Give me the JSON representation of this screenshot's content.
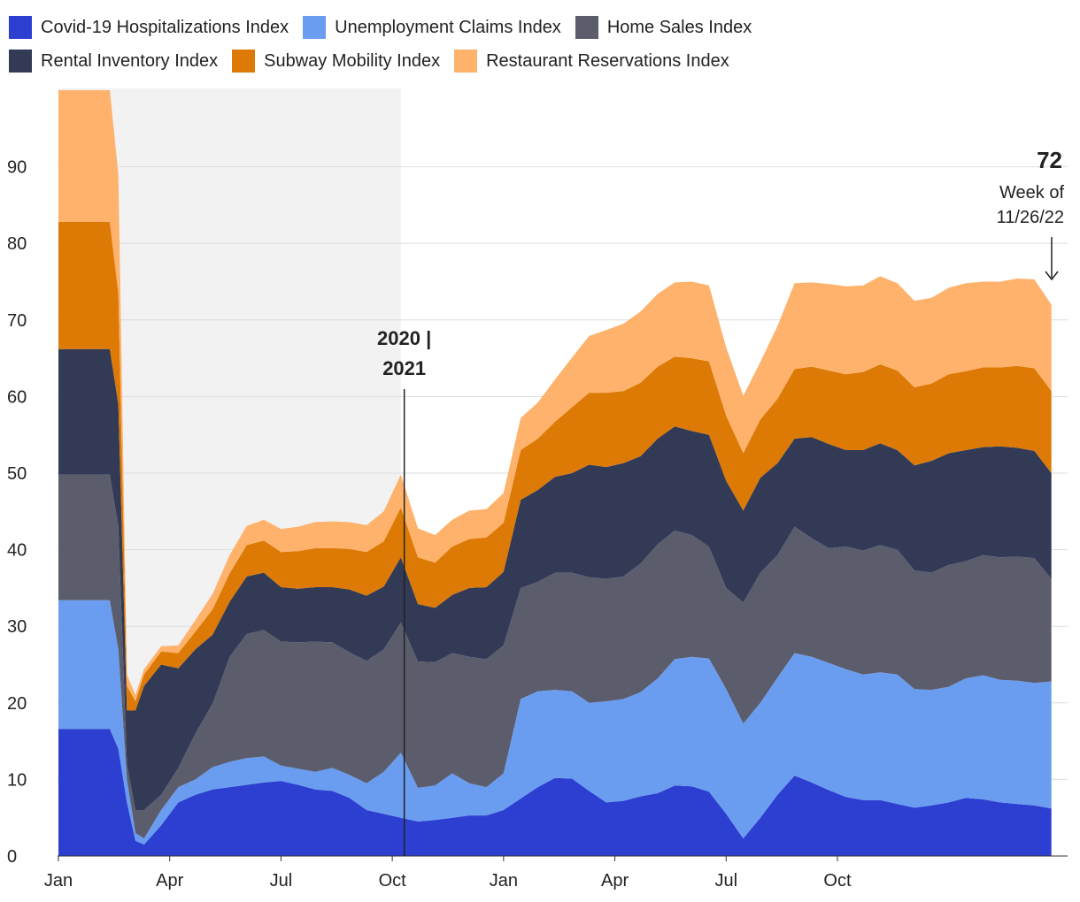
{
  "chart_data": {
    "type": "area",
    "stacked": true,
    "x_tick_labels": [
      "Jan",
      "Apr",
      "Jul",
      "Oct",
      "Jan",
      "Apr",
      "Jul",
      "Oct"
    ],
    "y_ticks": [
      0,
      10,
      20,
      30,
      40,
      50,
      60,
      70,
      80,
      90
    ],
    "ylim": [
      0,
      100
    ],
    "grid": "horizontal",
    "legend_position": "top",
    "shaded_region": {
      "from_week": 0,
      "to_week": 40
    },
    "divider_label_top": "2020 |",
    "divider_label_bottom": "2021",
    "end_value_label": "72",
    "end_week_label_1": "Week of",
    "end_week_label_2": "11/26/22",
    "x_weeks": [
      0,
      2,
      4,
      6,
      7,
      8,
      9,
      10,
      12,
      14,
      16,
      18,
      20,
      22,
      24,
      26,
      28,
      30,
      32,
      34,
      36,
      38,
      40,
      42,
      44,
      46,
      48,
      50,
      52,
      54,
      56,
      58,
      60,
      62,
      64,
      66,
      68,
      70,
      72,
      74,
      76,
      78,
      80,
      82,
      84,
      86,
      88,
      90,
      92,
      94,
      96,
      98,
      100,
      102,
      104,
      106,
      108,
      110,
      112,
      114,
      116
    ],
    "series": [
      {
        "name": "Covid-19 Hospitalizations Index",
        "color": "#2c3fd1",
        "values": [
          16.6,
          16.6,
          16.6,
          16.6,
          14,
          7,
          2,
          1.5,
          4,
          7,
          8,
          8.7,
          9,
          9.3,
          9.6,
          9.8,
          9.3,
          8.7,
          8.5,
          7.6,
          6,
          5.5,
          5,
          4.5,
          4.7,
          5,
          5.3,
          5.3,
          6,
          7.5,
          9,
          10.2,
          10.1,
          8.5,
          7,
          7.2,
          7.8,
          8.2,
          9.2,
          9.1,
          8.4,
          5.5,
          2.3,
          5,
          8,
          10.5,
          9.6,
          8.6,
          7.7,
          7.3,
          7.3,
          6.8,
          6.3,
          6.6,
          7,
          7.6,
          7.4,
          7,
          6.8,
          6.6,
          6.2
        ]
      },
      {
        "name": "Unemployment Claims Index",
        "color": "#6a9df0",
        "values": [
          16.8,
          16.8,
          16.8,
          16.8,
          13,
          3,
          1,
          0.8,
          2,
          2,
          2,
          2.9,
          3.3,
          3.5,
          3.4,
          2,
          2.1,
          2.3,
          3,
          3,
          3.5,
          5.5,
          8.5,
          4.4,
          4.5,
          5.8,
          4.2,
          3.7,
          4.8,
          13,
          12.5,
          11.5,
          11.4,
          11.5,
          13.2,
          13.3,
          13.6,
          15,
          16.5,
          16.9,
          17.4,
          16.3,
          15,
          15,
          15.3,
          16,
          16.4,
          16.6,
          16.7,
          16.4,
          16.7,
          16.9,
          15.5,
          15.1,
          15.1,
          15.6,
          16.2,
          16,
          16.1,
          16,
          16.6
        ]
      },
      {
        "name": "Home Sales Index",
        "color": "#5b5d6d",
        "values": [
          16.4,
          16.4,
          16.4,
          16.4,
          16,
          2,
          3,
          3.7,
          2,
          2.5,
          6,
          8.3,
          13.7,
          16.2,
          16.5,
          16.2,
          16.5,
          17,
          16.4,
          16,
          16,
          16,
          17,
          16.5,
          16.1,
          15.7,
          16.5,
          16.7,
          16.7,
          14.5,
          14.3,
          15.3,
          15.5,
          16.4,
          16,
          16,
          16.8,
          17.5,
          16.8,
          15.9,
          14.6,
          13.2,
          15.8,
          17,
          16,
          16.5,
          15.5,
          15,
          16,
          16.2,
          16.6,
          16.3,
          15.5,
          15.3,
          15.9,
          15.3,
          15.7,
          16,
          16.2,
          16.3,
          13.4
        ]
      },
      {
        "name": "Rental Inventory Index",
        "color": "#323a56",
        "values": [
          16.4,
          16.4,
          16.4,
          16.4,
          16,
          7,
          13,
          16.2,
          17,
          13,
          11,
          9,
          7.2,
          7.5,
          7.5,
          7.1,
          7,
          7.1,
          7.2,
          8.2,
          8.5,
          8.2,
          8.5,
          7.5,
          7.1,
          7.6,
          9,
          9.4,
          9.6,
          11.5,
          12,
          12.5,
          13,
          14.7,
          14.6,
          14.8,
          14,
          13.8,
          13.6,
          13.6,
          14.6,
          14,
          12,
          12.4,
          12,
          11.5,
          13.2,
          13.6,
          12.6,
          13.1,
          13.3,
          13,
          13.7,
          14.6,
          14.6,
          14.5,
          14.1,
          14.5,
          14.2,
          14,
          13.8
        ]
      },
      {
        "name": "Subway Mobility Index",
        "color": "#dd7a05",
        "values": [
          16.6,
          16.6,
          16.6,
          16.6,
          14.5,
          3.2,
          1.2,
          1.5,
          1.7,
          2,
          2.3,
          3.3,
          3.7,
          4.1,
          4.2,
          4.6,
          4.9,
          5.1,
          5.1,
          5.3,
          5.7,
          5.9,
          6.5,
          6.1,
          5.9,
          6.3,
          6.4,
          6.5,
          6.4,
          6.5,
          6.7,
          7.2,
          8.6,
          9.4,
          9.7,
          9.4,
          9.6,
          9.4,
          9.1,
          9.5,
          9.6,
          8.5,
          7.5,
          7.6,
          8.4,
          9.1,
          9.2,
          9.6,
          9.9,
          10.2,
          10.3,
          10.4,
          10.2,
          10.1,
          10.3,
          10.3,
          10.4,
          10.3,
          10.7,
          10.8,
          10.7
        ]
      },
      {
        "name": "Restaurant Reservations Index",
        "color": "#feb26b",
        "values": [
          17.2,
          17.2,
          17.2,
          17.2,
          15.5,
          1.5,
          0.8,
          0.7,
          0.7,
          1,
          1.5,
          2,
          2.4,
          2.5,
          2.7,
          3,
          3.2,
          3.4,
          3.5,
          3.5,
          3.5,
          3.9,
          4.3,
          3.8,
          3.6,
          3.5,
          3.7,
          3.7,
          3.9,
          4.2,
          4.7,
          5.5,
          6.5,
          7.4,
          8.2,
          8.8,
          9.3,
          9.5,
          9.7,
          10,
          9.9,
          8.9,
          7.5,
          7.5,
          9.5,
          11.2,
          11,
          11.3,
          11.5,
          11.3,
          11.5,
          11.4,
          11.3,
          11.2,
          11.3,
          11.5,
          11.2,
          11.2,
          11.4,
          11.6,
          11.3
        ]
      }
    ]
  }
}
